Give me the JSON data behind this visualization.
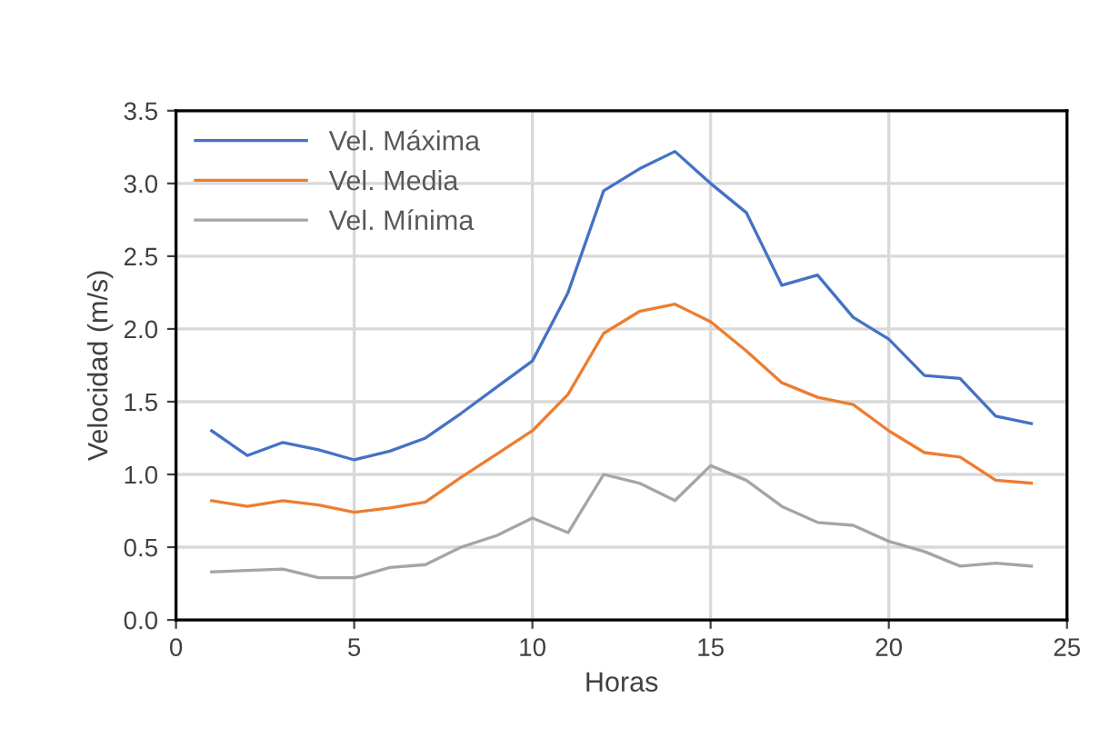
{
  "chart_data": {
    "type": "line",
    "xlabel": "Horas",
    "ylabel": "Velocidad (m/s)",
    "x": [
      1,
      2,
      3,
      4,
      5,
      6,
      7,
      8,
      9,
      10,
      11,
      12,
      13,
      14,
      15,
      16,
      17,
      18,
      19,
      20,
      21,
      22,
      23,
      24
    ],
    "series": [
      {
        "name": "Vel. Máxima",
        "color": "#4472c4",
        "values": [
          1.3,
          1.13,
          1.22,
          1.17,
          1.1,
          1.16,
          1.25,
          1.42,
          1.6,
          1.78,
          2.25,
          2.95,
          3.1,
          3.22,
          3.0,
          2.8,
          2.3,
          2.37,
          2.08,
          1.93,
          1.68,
          1.66,
          1.4,
          1.35
        ]
      },
      {
        "name": "Vel. Media",
        "color": "#ed7d31",
        "values": [
          0.82,
          0.78,
          0.82,
          0.79,
          0.74,
          0.77,
          0.81,
          0.98,
          1.14,
          1.3,
          1.55,
          1.97,
          2.12,
          2.17,
          2.05,
          1.85,
          1.63,
          1.53,
          1.48,
          1.3,
          1.15,
          1.12,
          0.96,
          0.94
        ]
      },
      {
        "name": "Vel. Mínima",
        "color": "#a5a5a5",
        "values": [
          0.33,
          0.34,
          0.35,
          0.29,
          0.29,
          0.36,
          0.38,
          0.5,
          0.58,
          0.7,
          0.6,
          1.0,
          0.94,
          0.82,
          1.06,
          0.96,
          0.78,
          0.67,
          0.65,
          0.54,
          0.47,
          0.37,
          0.39,
          0.37
        ]
      }
    ],
    "xlim": [
      0,
      25
    ],
    "xticks": [
      0,
      5,
      10,
      15,
      20,
      25
    ],
    "ylim": [
      0,
      3.5
    ],
    "yticks": [
      {
        "value": 0,
        "label": "0.0"
      },
      {
        "value": 0.5,
        "label": "0.5"
      },
      {
        "value": 1,
        "label": "1.0"
      },
      {
        "value": 1.5,
        "label": "1.5"
      },
      {
        "value": 2,
        "label": "2.0"
      },
      {
        "value": 2.5,
        "label": "2.5"
      },
      {
        "value": 3,
        "label": "3.0"
      },
      {
        "value": 3.5,
        "label": "3.5"
      }
    ],
    "grid": true,
    "legend": "top left",
    "marker": "none",
    "line_style": "solid"
  }
}
